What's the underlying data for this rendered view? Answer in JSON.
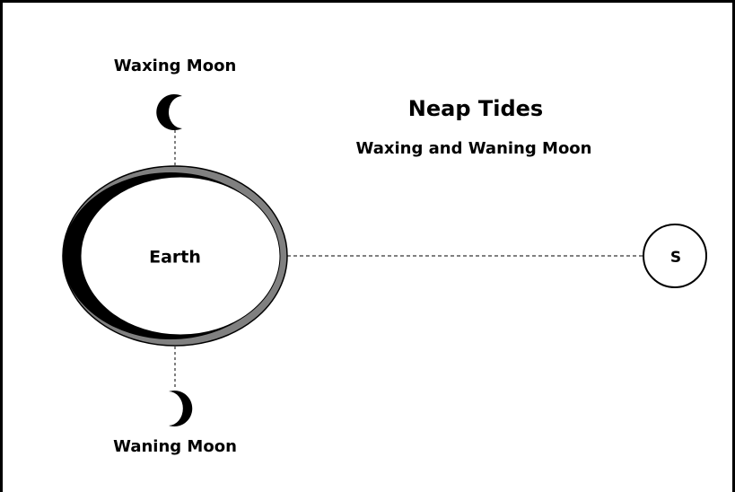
{
  "title": "Neap Tides",
  "subtitle": "Waxing and Waning Moon",
  "nodes": [
    {
      "label": "Waxing Moon"
    },
    {
      "label": "Earth"
    },
    {
      "label": "Waning Moon"
    },
    {
      "label": "S"
    }
  ]
}
